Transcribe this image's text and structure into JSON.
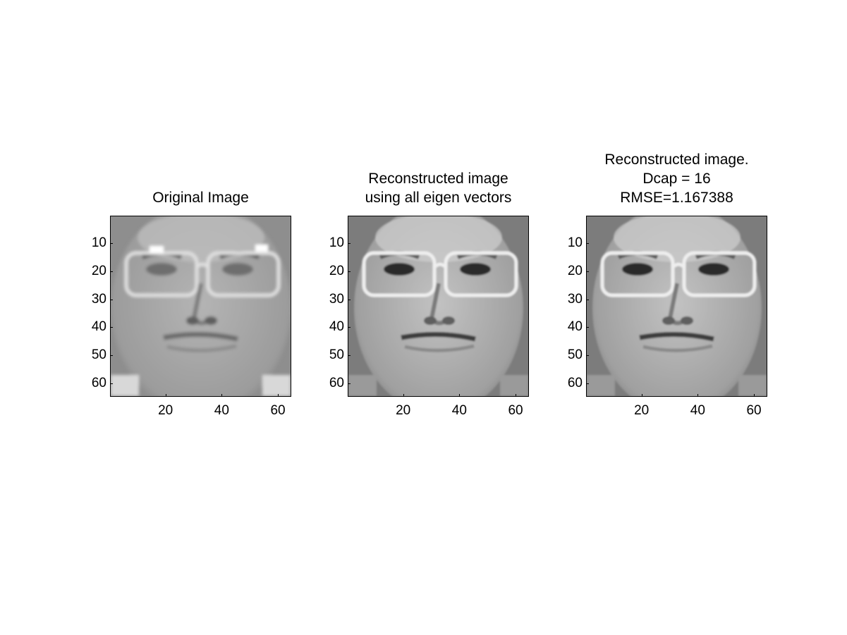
{
  "chart_data": [
    {
      "type": "image",
      "title_lines": [
        "Original Image"
      ],
      "xticks": [
        "20",
        "40",
        "60"
      ],
      "yticks": [
        "10",
        "20",
        "30",
        "40",
        "50",
        "60"
      ],
      "xlim": [
        0.5,
        64.5
      ],
      "ylim": [
        0.5,
        64.5
      ],
      "ydir": "reverse",
      "colormap": "gray"
    },
    {
      "type": "image",
      "title_lines": [
        "Reconstructed image",
        "using all eigen vectors"
      ],
      "xticks": [
        "20",
        "40",
        "60"
      ],
      "yticks": [
        "10",
        "20",
        "30",
        "40",
        "50",
        "60"
      ],
      "xlim": [
        0.5,
        64.5
      ],
      "ylim": [
        0.5,
        64.5
      ],
      "ydir": "reverse",
      "colormap": "gray"
    },
    {
      "type": "image",
      "title_lines": [
        "Reconstructed image.",
        "Dcap = 16",
        "RMSE=1.167388"
      ],
      "xticks": [
        "20",
        "40",
        "60"
      ],
      "yticks": [
        "10",
        "20",
        "30",
        "40",
        "50",
        "60"
      ],
      "xlim": [
        0.5,
        64.5
      ],
      "ylim": [
        0.5,
        64.5
      ],
      "ydir": "reverse",
      "colormap": "gray"
    }
  ]
}
